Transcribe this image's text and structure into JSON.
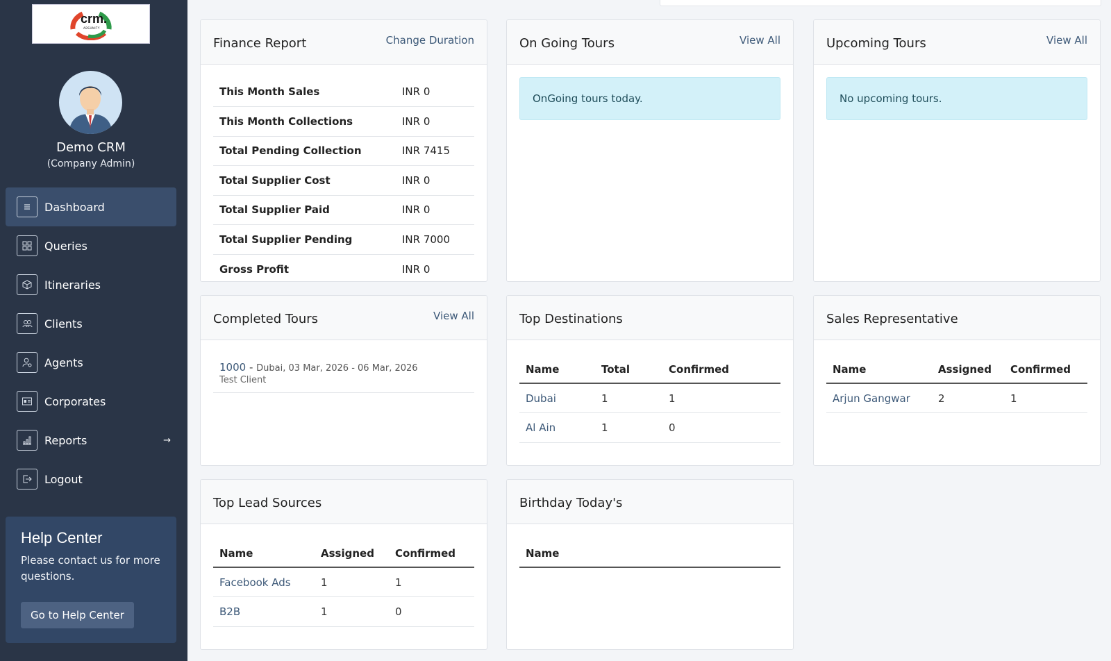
{
  "sidebar": {
    "logo_text": "crm.",
    "logo_subtext": "ABSUNITY",
    "user_name": "Demo CRM",
    "user_role": "(Company Admin)",
    "nav": [
      {
        "label": "Dashboard",
        "icon": "menu-lines-icon",
        "active": true
      },
      {
        "label": "Queries",
        "icon": "grid-icon"
      },
      {
        "label": "Itineraries",
        "icon": "box-icon"
      },
      {
        "label": "Clients",
        "icon": "users-icon"
      },
      {
        "label": "Agents",
        "icon": "user-gear-icon"
      },
      {
        "label": "Corporates",
        "icon": "id-card-icon"
      },
      {
        "label": "Reports",
        "icon": "bar-chart-icon",
        "arrow": "→"
      },
      {
        "label": "Logout",
        "icon": "logout-icon"
      }
    ],
    "help": {
      "title": "Help Center",
      "text": "Please contact us for more questions.",
      "button": "Go to Help Center"
    }
  },
  "finance": {
    "title": "Finance Report",
    "link": "Change Duration",
    "rows": [
      {
        "label": "This Month Sales",
        "value": "INR 0"
      },
      {
        "label": "This Month Collections",
        "value": "INR 0"
      },
      {
        "label": "Total Pending Collection",
        "value": "INR 7415"
      },
      {
        "label": "Total Supplier Cost",
        "value": "INR 0"
      },
      {
        "label": "Total Supplier Paid",
        "value": "INR 0"
      },
      {
        "label": "Total Supplier Pending",
        "value": "INR 7000"
      },
      {
        "label": "Gross Profit",
        "value": "INR 0"
      }
    ]
  },
  "ongoing": {
    "title": "On Going Tours",
    "link": "View All",
    "message": "OnGoing tours today."
  },
  "upcoming": {
    "title": "Upcoming Tours",
    "link": "View All",
    "message": "No upcoming tours."
  },
  "completed": {
    "title": "Completed Tours",
    "link": "View All",
    "items": [
      {
        "id": "1000",
        "sep": "-",
        "meta": "Dubai, 03 Mar, 2026 - 06 Mar, 2026",
        "client": "Test Client"
      }
    ]
  },
  "top_destinations": {
    "title": "Top Destinations",
    "headers": [
      "Name",
      "Total",
      "Confirmed"
    ],
    "rows": [
      [
        "Dubai",
        "1",
        "1"
      ],
      [
        "Al Ain",
        "1",
        "0"
      ]
    ]
  },
  "sales_rep": {
    "title": "Sales Representative",
    "headers": [
      "Name",
      "Assigned",
      "Confirmed"
    ],
    "rows": [
      [
        "Arjun Gangwar",
        "2",
        "1"
      ]
    ]
  },
  "lead_sources": {
    "title": "Top Lead Sources",
    "headers": [
      "Name",
      "Assigned",
      "Confirmed"
    ],
    "rows": [
      [
        "Facebook Ads",
        "1",
        "1"
      ],
      [
        "B2B",
        "1",
        "0"
      ]
    ]
  },
  "birthday": {
    "title": "Birthday Today's",
    "headers": [
      "Name"
    ]
  }
}
